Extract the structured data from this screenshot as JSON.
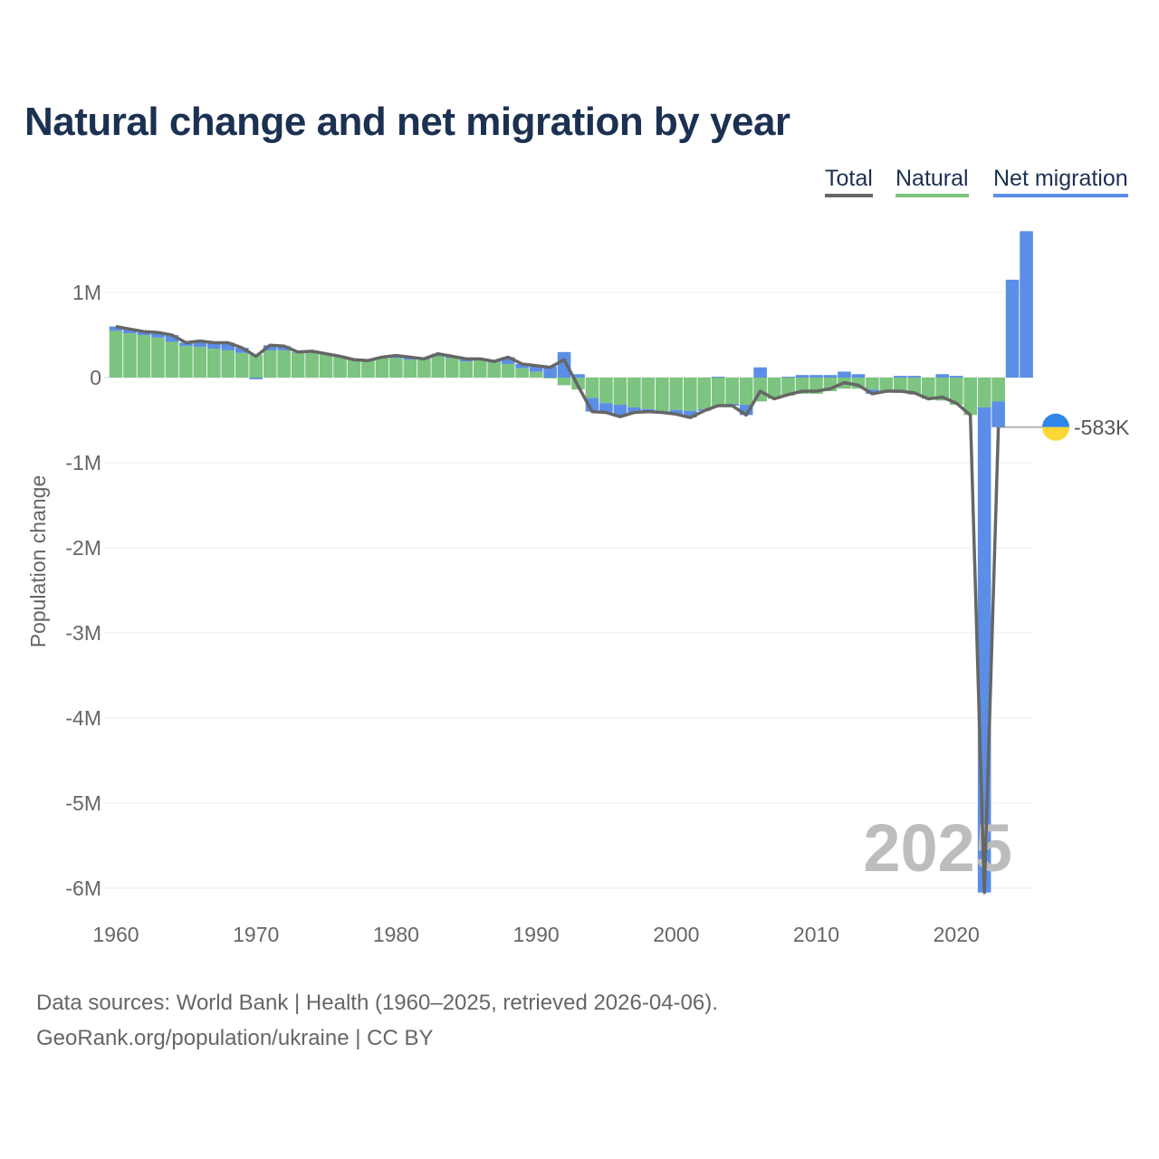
{
  "legend": {
    "total": "Total",
    "natural": "Natural",
    "net": "Net migration"
  },
  "footer": {
    "line1": "Data sources: World Bank | Health (1960–2025, retrieved 2026-04-06).",
    "line2": "GeoRank.org/population/ukraine | CC BY"
  },
  "chart_data": {
    "type": "bar",
    "title": "Natural change and net migration by year",
    "ylabel": "Population change",
    "xlabel": "",
    "ylim": [
      -6100000,
      1850000
    ],
    "xlim": [
      1959.2,
      2026.3
    ],
    "yticks": [
      1000000,
      0,
      -1000000,
      -2000000,
      -3000000,
      -4000000,
      -5000000,
      -6000000
    ],
    "ytick_labels": [
      "1M",
      "0",
      "-1M",
      "-2M",
      "-3M",
      "-4M",
      "-5M",
      "-6M"
    ],
    "xticks": [
      1960,
      1970,
      1980,
      1990,
      2000,
      2010,
      2020
    ],
    "xtick_labels": [
      "1960",
      "1970",
      "1980",
      "1990",
      "2000",
      "2010",
      "2020"
    ],
    "grid": true,
    "legend_position": "top-right",
    "year_watermark": "2025",
    "annotation": {
      "year": 2023,
      "label": "-583K",
      "value": -583000
    },
    "colors": {
      "natural": "#7cc47f",
      "net": "#5b8ee6",
      "total": "#666666",
      "flag_top": "#2f86e8",
      "flag_bottom": "#fdd835"
    },
    "years": [
      1960,
      1961,
      1962,
      1963,
      1964,
      1965,
      1966,
      1967,
      1968,
      1969,
      1970,
      1971,
      1972,
      1973,
      1974,
      1975,
      1976,
      1977,
      1978,
      1979,
      1980,
      1981,
      1982,
      1983,
      1984,
      1985,
      1986,
      1987,
      1988,
      1989,
      1990,
      1991,
      1992,
      1993,
      1994,
      1995,
      1996,
      1997,
      1998,
      1999,
      2000,
      2001,
      2002,
      2003,
      2004,
      2005,
      2006,
      2007,
      2008,
      2009,
      2010,
      2011,
      2012,
      2013,
      2014,
      2015,
      2016,
      2017,
      2018,
      2019,
      2020,
      2021,
      2022,
      2023,
      2024,
      2025
    ],
    "series": [
      {
        "name": "Natural",
        "values": [
          550000,
          520000,
          500000,
          470000,
          420000,
          370000,
          360000,
          340000,
          320000,
          290000,
          270000,
          320000,
          320000,
          290000,
          290000,
          270000,
          250000,
          210000,
          200000,
          230000,
          230000,
          210000,
          210000,
          250000,
          230000,
          190000,
          210000,
          180000,
          160000,
          110000,
          70000,
          -10000,
          -90000,
          -140000,
          -240000,
          -300000,
          -320000,
          -350000,
          -370000,
          -400000,
          -380000,
          -390000,
          -370000,
          -340000,
          -310000,
          -320000,
          -280000,
          -250000,
          -210000,
          -190000,
          -190000,
          -160000,
          -130000,
          -130000,
          -140000,
          -160000,
          -180000,
          -200000,
          -250000,
          -270000,
          -320000,
          -440000,
          -350000,
          -280000,
          null,
          null
        ]
      },
      {
        "name": "Net migration",
        "values": [
          50000,
          50000,
          40000,
          60000,
          80000,
          40000,
          70000,
          70000,
          90000,
          60000,
          -20000,
          60000,
          50000,
          10000,
          20000,
          10000,
          0,
          0,
          0,
          10000,
          30000,
          30000,
          10000,
          30000,
          20000,
          30000,
          10000,
          10000,
          80000,
          50000,
          70000,
          130000,
          300000,
          40000,
          -160000,
          -110000,
          -140000,
          -60000,
          -30000,
          -10000,
          -50000,
          -80000,
          -20000,
          10000,
          -20000,
          -120000,
          120000,
          0,
          10000,
          30000,
          30000,
          30000,
          70000,
          40000,
          -50000,
          0,
          20000,
          20000,
          0,
          40000,
          20000,
          0,
          -5700000,
          -303000,
          1150000,
          1720000
        ]
      },
      {
        "name": "Total",
        "values": [
          600000,
          570000,
          540000,
          530000,
          500000,
          410000,
          430000,
          410000,
          410000,
          350000,
          250000,
          380000,
          370000,
          300000,
          310000,
          280000,
          250000,
          210000,
          200000,
          240000,
          260000,
          240000,
          220000,
          280000,
          250000,
          220000,
          220000,
          190000,
          240000,
          160000,
          140000,
          120000,
          210000,
          -100000,
          -400000,
          -410000,
          -460000,
          -410000,
          -400000,
          -410000,
          -430000,
          -470000,
          -390000,
          -330000,
          -330000,
          -440000,
          -160000,
          -250000,
          -200000,
          -160000,
          -160000,
          -130000,
          -60000,
          -90000,
          -190000,
          -160000,
          -160000,
          -180000,
          -250000,
          -230000,
          -300000,
          -440000,
          -6050000,
          -583000,
          null,
          null
        ]
      }
    ]
  }
}
